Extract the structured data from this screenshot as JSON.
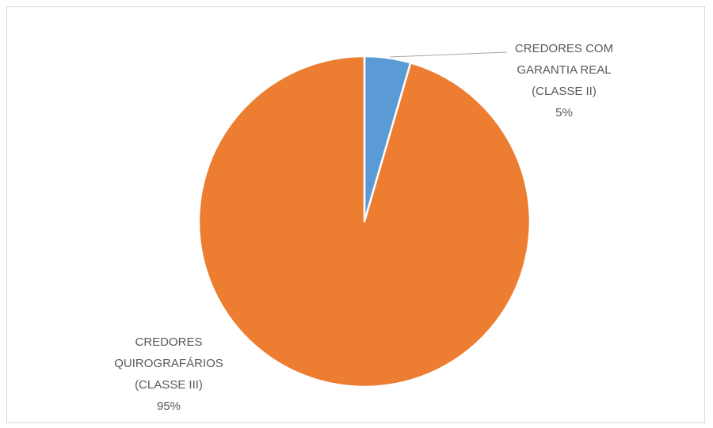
{
  "chart_data": {
    "type": "pie",
    "title": "",
    "slices": [
      {
        "name": "CREDORES COM GARANTIA REAL (CLASSE II)",
        "label_lines": [
          "CREDORES COM",
          "GARANTIA REAL",
          "(CLASSE II)"
        ],
        "percent_label": "5%",
        "value": 4.5,
        "color": "#5b9bd5"
      },
      {
        "name": "CREDORES QUIROGRAFÁRIOS (CLASSE III)",
        "label_lines": [
          "CREDORES",
          "QUIROGRAFÁRIOS",
          "(CLASSE III)"
        ],
        "percent_label": "95%",
        "value": 95.5,
        "color": "#ed7d31"
      }
    ],
    "legend": "none",
    "data_labels": "outside-with-leader"
  }
}
